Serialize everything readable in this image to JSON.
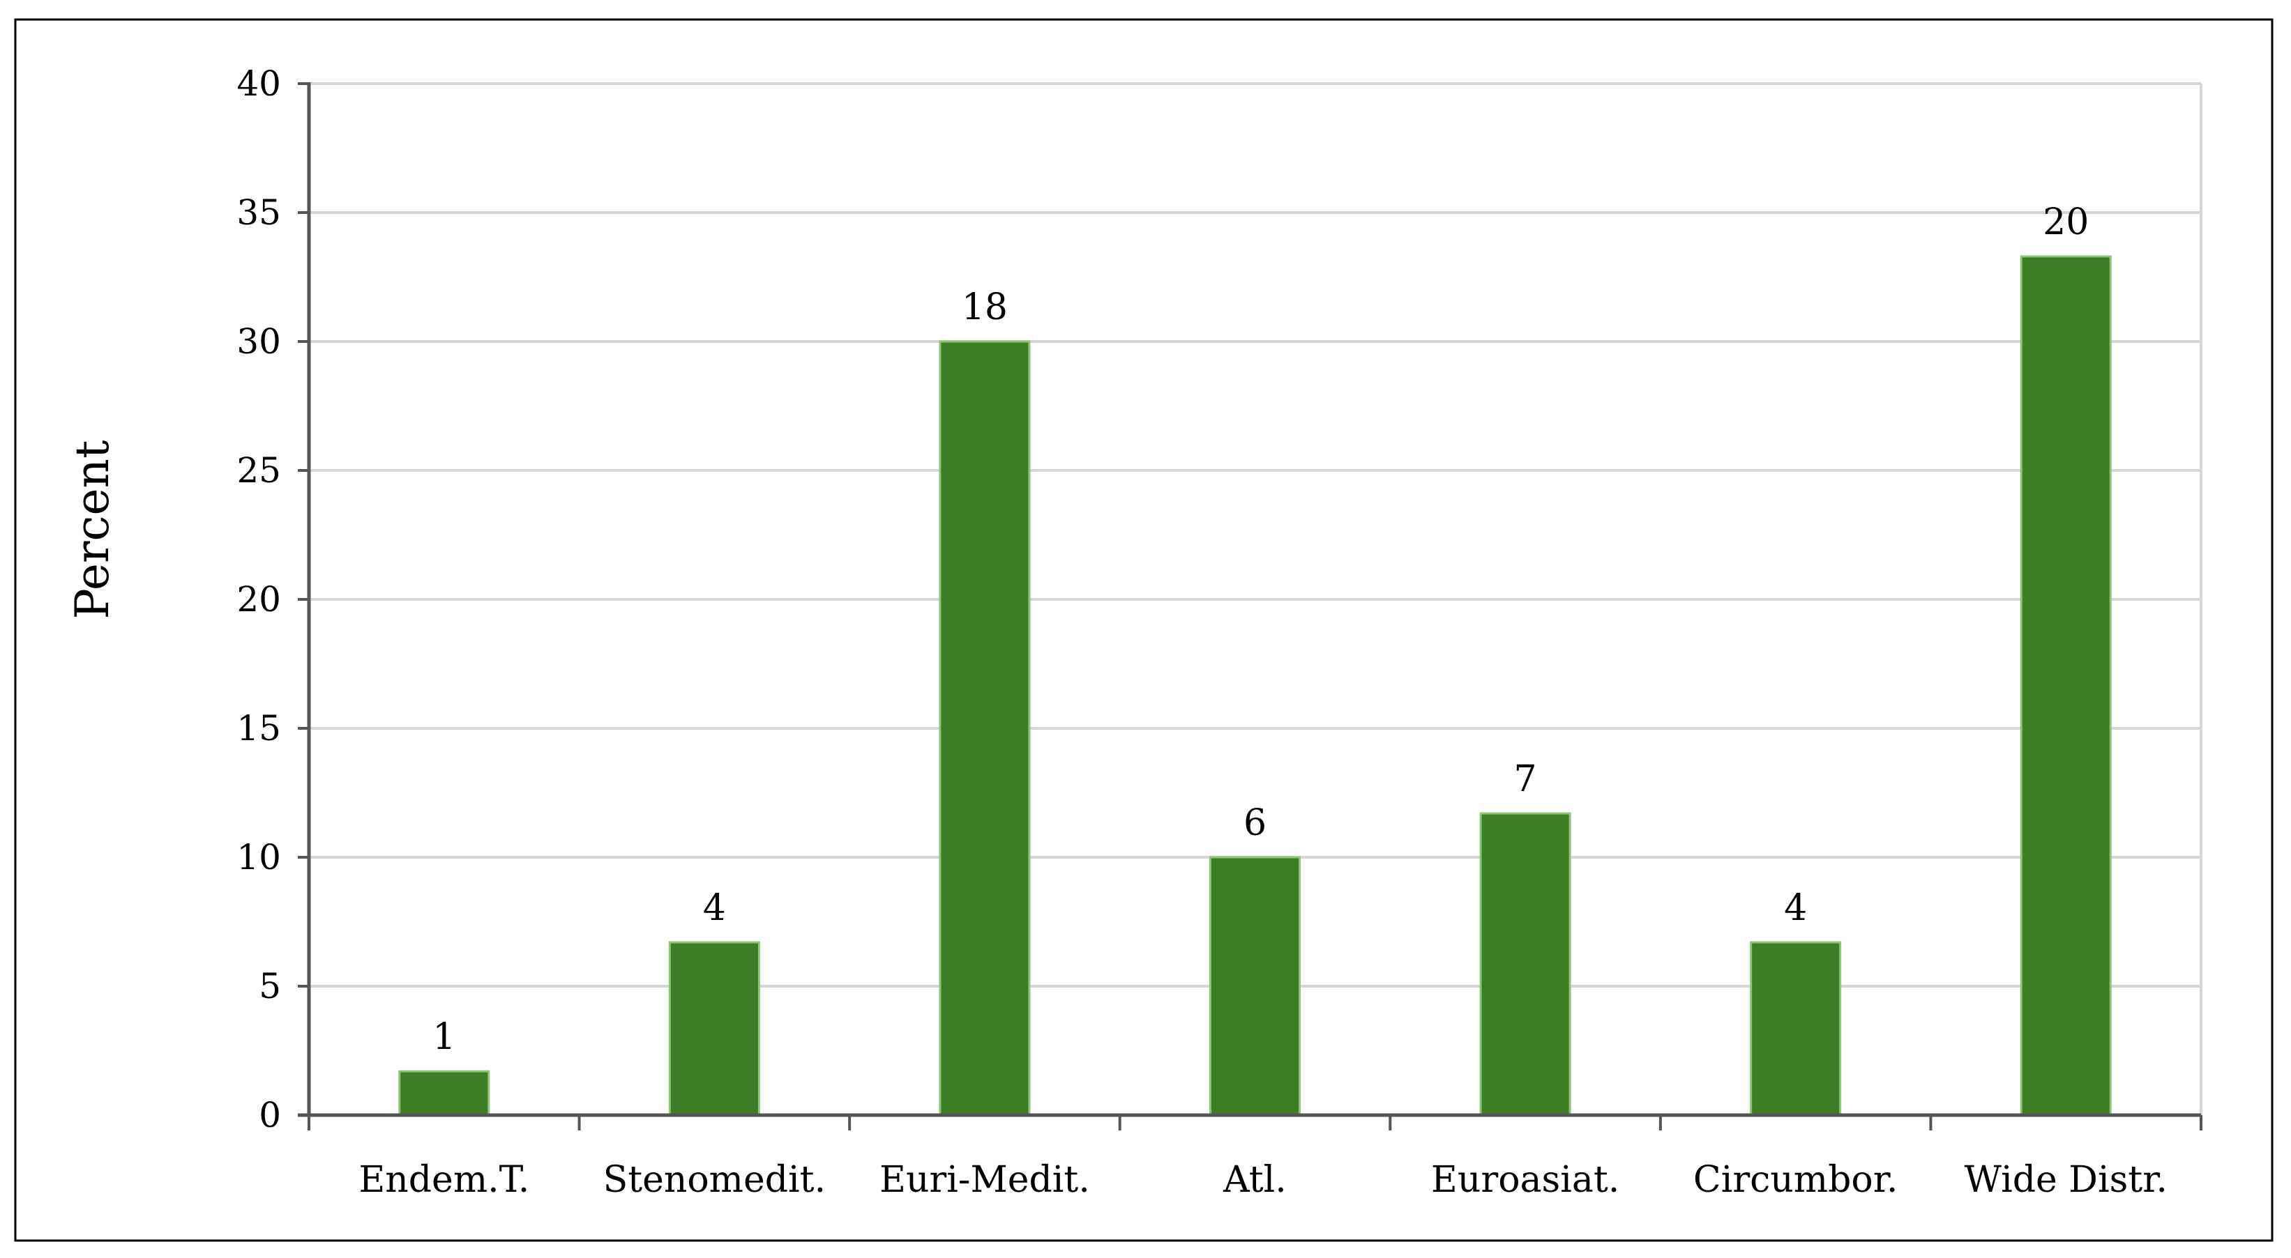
{
  "chart_data": {
    "type": "bar",
    "title": "",
    "xlabel": "",
    "ylabel": "Percent",
    "categories": [
      "Endem.T.",
      "Stenomedit.",
      "Euri-Medit.",
      "Atl.",
      "Euroasiat.",
      "Circumbor.",
      "Wide Distr."
    ],
    "values": [
      1.7,
      6.7,
      30,
      10,
      11.7,
      6.7,
      33.3
    ],
    "data_labels": [
      "1",
      "4",
      "18",
      "6",
      "7",
      "4",
      "20"
    ],
    "ylim": [
      0,
      40
    ],
    "yticks": [
      0,
      5,
      10,
      15,
      20,
      25,
      30,
      35,
      40
    ],
    "grid": true,
    "legend": "none",
    "colors": {
      "bar": "#3d7d25",
      "bar_edge": "#8fc37a",
      "gridline": "#d6d6d6",
      "axis": "#555555",
      "frame": "#000000"
    }
  }
}
